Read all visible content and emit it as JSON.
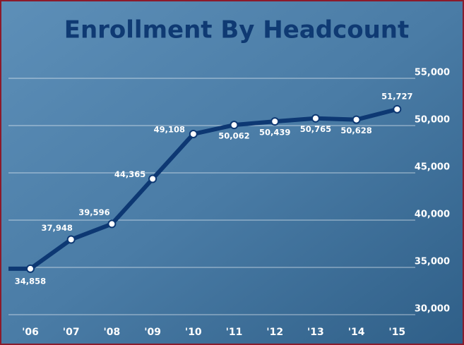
{
  "chart_data": {
    "type": "line",
    "title": "Enrollment By Headcount",
    "categories": [
      "'06",
      "'07",
      "'08",
      "'09",
      "'10",
      "'11",
      "'12",
      "'13",
      "'14",
      "'15"
    ],
    "series": [
      {
        "name": "Enrollment",
        "color": "#0d3873",
        "values": [
          34858,
          37948,
          39596,
          44365,
          49108,
          50062,
          50439,
          50765,
          50628,
          51727
        ],
        "value_labels": [
          "34,858",
          "37,948",
          "39,596",
          "44,365",
          "49,108",
          "50,062",
          "50,439",
          "50,765",
          "50,628",
          "51,727"
        ]
      }
    ],
    "ylim": [
      30000,
      55000
    ],
    "yticks": [
      {
        "value": 30000,
        "label": "30,000"
      },
      {
        "value": 35000,
        "label": "35,000"
      },
      {
        "value": 40000,
        "label": "40,000"
      },
      {
        "value": 45000,
        "label": "45,000"
      },
      {
        "value": 50000,
        "label": "50,000"
      },
      {
        "value": 55000,
        "label": "55,000"
      }
    ],
    "grid": true
  }
}
